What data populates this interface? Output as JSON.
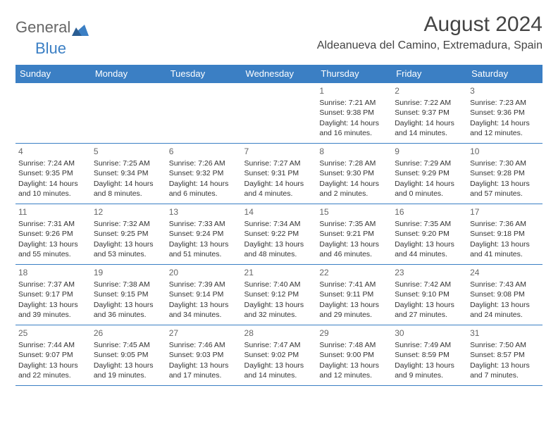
{
  "logo": {
    "text1": "General",
    "text2": "Blue"
  },
  "title": {
    "month": "August 2024",
    "location": "Aldeanueva del Camino, Extremadura, Spain"
  },
  "colors": {
    "accent": "#3b7fc4",
    "header_text": "#ffffff",
    "page_bg": "#ffffff",
    "body_text": "#333333",
    "logo_gray": "#666666"
  },
  "weekdays": [
    "Sunday",
    "Monday",
    "Tuesday",
    "Wednesday",
    "Thursday",
    "Friday",
    "Saturday"
  ],
  "weeks": [
    [
      {},
      {},
      {},
      {},
      {
        "day": "1",
        "sunrise": "Sunrise: 7:21 AM",
        "sunset": "Sunset: 9:38 PM",
        "daylight": "Daylight: 14 hours and 16 minutes."
      },
      {
        "day": "2",
        "sunrise": "Sunrise: 7:22 AM",
        "sunset": "Sunset: 9:37 PM",
        "daylight": "Daylight: 14 hours and 14 minutes."
      },
      {
        "day": "3",
        "sunrise": "Sunrise: 7:23 AM",
        "sunset": "Sunset: 9:36 PM",
        "daylight": "Daylight: 14 hours and 12 minutes."
      }
    ],
    [
      {
        "day": "4",
        "sunrise": "Sunrise: 7:24 AM",
        "sunset": "Sunset: 9:35 PM",
        "daylight": "Daylight: 14 hours and 10 minutes."
      },
      {
        "day": "5",
        "sunrise": "Sunrise: 7:25 AM",
        "sunset": "Sunset: 9:34 PM",
        "daylight": "Daylight: 14 hours and 8 minutes."
      },
      {
        "day": "6",
        "sunrise": "Sunrise: 7:26 AM",
        "sunset": "Sunset: 9:32 PM",
        "daylight": "Daylight: 14 hours and 6 minutes."
      },
      {
        "day": "7",
        "sunrise": "Sunrise: 7:27 AM",
        "sunset": "Sunset: 9:31 PM",
        "daylight": "Daylight: 14 hours and 4 minutes."
      },
      {
        "day": "8",
        "sunrise": "Sunrise: 7:28 AM",
        "sunset": "Sunset: 9:30 PM",
        "daylight": "Daylight: 14 hours and 2 minutes."
      },
      {
        "day": "9",
        "sunrise": "Sunrise: 7:29 AM",
        "sunset": "Sunset: 9:29 PM",
        "daylight": "Daylight: 14 hours and 0 minutes."
      },
      {
        "day": "10",
        "sunrise": "Sunrise: 7:30 AM",
        "sunset": "Sunset: 9:28 PM",
        "daylight": "Daylight: 13 hours and 57 minutes."
      }
    ],
    [
      {
        "day": "11",
        "sunrise": "Sunrise: 7:31 AM",
        "sunset": "Sunset: 9:26 PM",
        "daylight": "Daylight: 13 hours and 55 minutes."
      },
      {
        "day": "12",
        "sunrise": "Sunrise: 7:32 AM",
        "sunset": "Sunset: 9:25 PM",
        "daylight": "Daylight: 13 hours and 53 minutes."
      },
      {
        "day": "13",
        "sunrise": "Sunrise: 7:33 AM",
        "sunset": "Sunset: 9:24 PM",
        "daylight": "Daylight: 13 hours and 51 minutes."
      },
      {
        "day": "14",
        "sunrise": "Sunrise: 7:34 AM",
        "sunset": "Sunset: 9:22 PM",
        "daylight": "Daylight: 13 hours and 48 minutes."
      },
      {
        "day": "15",
        "sunrise": "Sunrise: 7:35 AM",
        "sunset": "Sunset: 9:21 PM",
        "daylight": "Daylight: 13 hours and 46 minutes."
      },
      {
        "day": "16",
        "sunrise": "Sunrise: 7:35 AM",
        "sunset": "Sunset: 9:20 PM",
        "daylight": "Daylight: 13 hours and 44 minutes."
      },
      {
        "day": "17",
        "sunrise": "Sunrise: 7:36 AM",
        "sunset": "Sunset: 9:18 PM",
        "daylight": "Daylight: 13 hours and 41 minutes."
      }
    ],
    [
      {
        "day": "18",
        "sunrise": "Sunrise: 7:37 AM",
        "sunset": "Sunset: 9:17 PM",
        "daylight": "Daylight: 13 hours and 39 minutes."
      },
      {
        "day": "19",
        "sunrise": "Sunrise: 7:38 AM",
        "sunset": "Sunset: 9:15 PM",
        "daylight": "Daylight: 13 hours and 36 minutes."
      },
      {
        "day": "20",
        "sunrise": "Sunrise: 7:39 AM",
        "sunset": "Sunset: 9:14 PM",
        "daylight": "Daylight: 13 hours and 34 minutes."
      },
      {
        "day": "21",
        "sunrise": "Sunrise: 7:40 AM",
        "sunset": "Sunset: 9:12 PM",
        "daylight": "Daylight: 13 hours and 32 minutes."
      },
      {
        "day": "22",
        "sunrise": "Sunrise: 7:41 AM",
        "sunset": "Sunset: 9:11 PM",
        "daylight": "Daylight: 13 hours and 29 minutes."
      },
      {
        "day": "23",
        "sunrise": "Sunrise: 7:42 AM",
        "sunset": "Sunset: 9:10 PM",
        "daylight": "Daylight: 13 hours and 27 minutes."
      },
      {
        "day": "24",
        "sunrise": "Sunrise: 7:43 AM",
        "sunset": "Sunset: 9:08 PM",
        "daylight": "Daylight: 13 hours and 24 minutes."
      }
    ],
    [
      {
        "day": "25",
        "sunrise": "Sunrise: 7:44 AM",
        "sunset": "Sunset: 9:07 PM",
        "daylight": "Daylight: 13 hours and 22 minutes."
      },
      {
        "day": "26",
        "sunrise": "Sunrise: 7:45 AM",
        "sunset": "Sunset: 9:05 PM",
        "daylight": "Daylight: 13 hours and 19 minutes."
      },
      {
        "day": "27",
        "sunrise": "Sunrise: 7:46 AM",
        "sunset": "Sunset: 9:03 PM",
        "daylight": "Daylight: 13 hours and 17 minutes."
      },
      {
        "day": "28",
        "sunrise": "Sunrise: 7:47 AM",
        "sunset": "Sunset: 9:02 PM",
        "daylight": "Daylight: 13 hours and 14 minutes."
      },
      {
        "day": "29",
        "sunrise": "Sunrise: 7:48 AM",
        "sunset": "Sunset: 9:00 PM",
        "daylight": "Daylight: 13 hours and 12 minutes."
      },
      {
        "day": "30",
        "sunrise": "Sunrise: 7:49 AM",
        "sunset": "Sunset: 8:59 PM",
        "daylight": "Daylight: 13 hours and 9 minutes."
      },
      {
        "day": "31",
        "sunrise": "Sunrise: 7:50 AM",
        "sunset": "Sunset: 8:57 PM",
        "daylight": "Daylight: 13 hours and 7 minutes."
      }
    ]
  ]
}
